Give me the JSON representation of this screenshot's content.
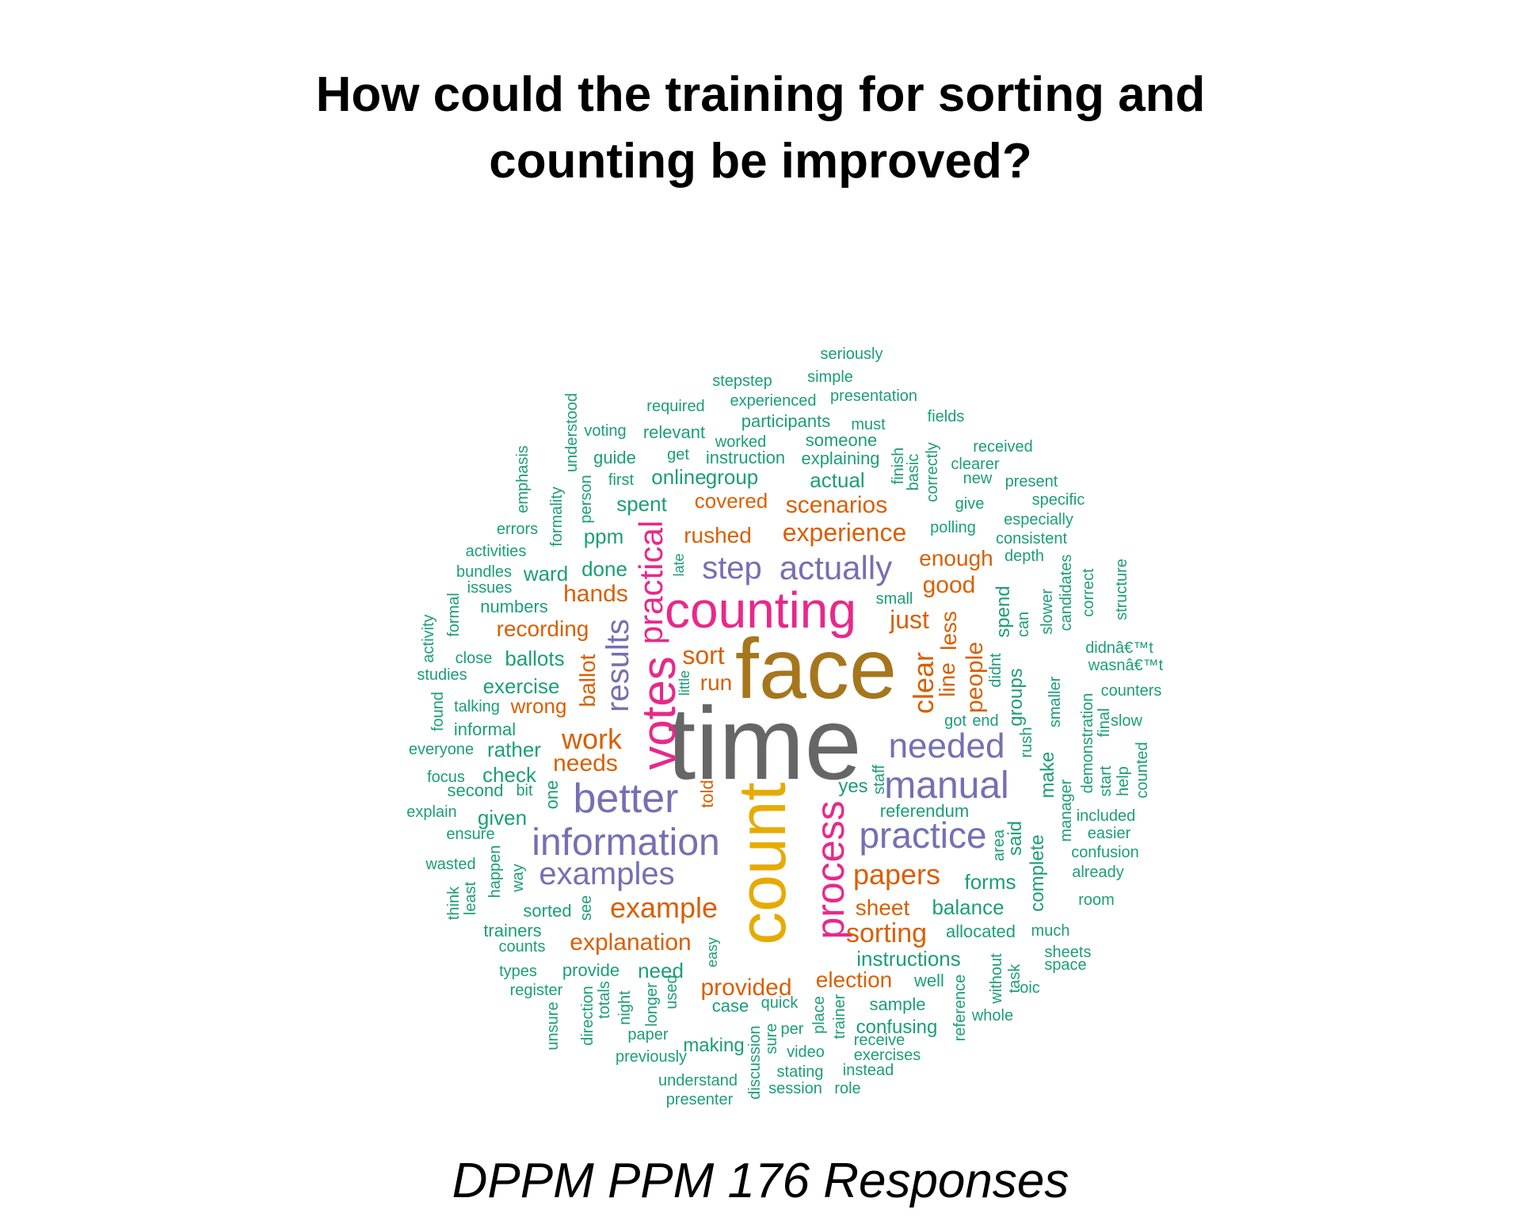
{
  "title_line1": "How could the training for sorting and",
  "title_line2": "counting be improved?",
  "caption": "DPPM PPM 176 Responses",
  "palette": {
    "teal": "#1b9e77",
    "orange": "#d95f02",
    "purple": "#7570b3",
    "magenta": "#e7298a",
    "olive": "#a6761d",
    "gold": "#e6ab02",
    "gray": "#666666"
  },
  "words": [
    {
      "text": "time",
      "color": "gray"
    },
    {
      "text": "face",
      "color": "olive"
    },
    {
      "text": "count",
      "color": "gold"
    },
    {
      "text": "counting",
      "color": "magenta"
    },
    {
      "text": "votes",
      "color": "magenta"
    },
    {
      "text": "process",
      "color": "magenta"
    },
    {
      "text": "practical",
      "color": "magenta"
    },
    {
      "text": "better",
      "color": "purple"
    },
    {
      "text": "information",
      "color": "purple"
    },
    {
      "text": "manual",
      "color": "purple"
    },
    {
      "text": "practice",
      "color": "purple"
    },
    {
      "text": "needed",
      "color": "purple"
    },
    {
      "text": "examples",
      "color": "purple"
    },
    {
      "text": "actually",
      "color": "purple"
    },
    {
      "text": "step",
      "color": "purple"
    },
    {
      "text": "results",
      "color": "purple"
    },
    {
      "text": "example",
      "color": "orange"
    },
    {
      "text": "papers",
      "color": "orange"
    },
    {
      "text": "experience",
      "color": "orange"
    },
    {
      "text": "clear",
      "color": "orange"
    },
    {
      "text": "work",
      "color": "orange"
    },
    {
      "text": "sorting",
      "color": "orange"
    },
    {
      "text": "explanation",
      "color": "orange"
    },
    {
      "text": "provided",
      "color": "orange"
    },
    {
      "text": "scenarios",
      "color": "orange"
    },
    {
      "text": "just",
      "color": "orange"
    },
    {
      "text": "election",
      "color": "orange"
    },
    {
      "text": "sheet",
      "color": "orange"
    },
    {
      "text": "enough",
      "color": "orange"
    },
    {
      "text": "people",
      "color": "orange"
    },
    {
      "text": "good",
      "color": "orange"
    },
    {
      "text": "rushed",
      "color": "orange"
    },
    {
      "text": "covered",
      "color": "orange"
    },
    {
      "text": "recording",
      "color": "orange"
    },
    {
      "text": "hands",
      "color": "orange"
    },
    {
      "text": "needs",
      "color": "orange"
    },
    {
      "text": "wrong",
      "color": "orange"
    },
    {
      "text": "sort",
      "color": "orange"
    },
    {
      "text": "run",
      "color": "orange"
    },
    {
      "text": "ballot",
      "color": "orange"
    },
    {
      "text": "line",
      "color": "orange"
    },
    {
      "text": "less",
      "color": "orange"
    },
    {
      "text": "told",
      "color": "orange"
    },
    {
      "text": "instructions",
      "color": "teal"
    },
    {
      "text": "balance",
      "color": "teal"
    },
    {
      "text": "forms",
      "color": "teal"
    },
    {
      "text": "complete",
      "color": "teal"
    },
    {
      "text": "said",
      "color": "teal"
    },
    {
      "text": "make",
      "color": "teal"
    },
    {
      "text": "groups",
      "color": "teal"
    },
    {
      "text": "spend",
      "color": "teal"
    },
    {
      "text": "yes",
      "color": "teal"
    },
    {
      "text": "referendum",
      "color": "teal"
    },
    {
      "text": "allocated",
      "color": "teal"
    },
    {
      "text": "much",
      "color": "teal"
    },
    {
      "text": "ballots",
      "color": "teal"
    },
    {
      "text": "exercise",
      "color": "teal"
    },
    {
      "text": "done",
      "color": "teal"
    },
    {
      "text": "ward",
      "color": "teal"
    },
    {
      "text": "ppm",
      "color": "teal"
    },
    {
      "text": "spent",
      "color": "teal"
    },
    {
      "text": "online",
      "color": "teal"
    },
    {
      "text": "group",
      "color": "teal"
    },
    {
      "text": "actual",
      "color": "teal"
    },
    {
      "text": "check",
      "color": "teal"
    },
    {
      "text": "rather",
      "color": "teal"
    },
    {
      "text": "given",
      "color": "teal"
    },
    {
      "text": "need",
      "color": "teal"
    },
    {
      "text": "making",
      "color": "teal"
    },
    {
      "text": "confusing",
      "color": "teal"
    },
    {
      "text": "sample",
      "color": "teal"
    },
    {
      "text": "well",
      "color": "teal"
    },
    {
      "text": "one",
      "color": "teal"
    },
    {
      "text": "someone",
      "color": "teal"
    },
    {
      "text": "relevant",
      "color": "teal"
    },
    {
      "text": "participants",
      "color": "teal"
    },
    {
      "text": "explaining",
      "color": "teal"
    },
    {
      "text": "instruction",
      "color": "teal"
    },
    {
      "text": "guide",
      "color": "teal"
    },
    {
      "text": "smaller",
      "color": "teal"
    },
    {
      "text": "manager",
      "color": "teal"
    },
    {
      "text": "demonstration",
      "color": "teal"
    },
    {
      "text": "area",
      "color": "teal"
    },
    {
      "text": "seriously",
      "color": "teal"
    },
    {
      "text": "simple",
      "color": "teal"
    },
    {
      "text": "stepstep",
      "color": "teal"
    },
    {
      "text": "presentation",
      "color": "teal"
    },
    {
      "text": "experienced",
      "color": "teal"
    },
    {
      "text": "required",
      "color": "teal"
    },
    {
      "text": "fields",
      "color": "teal"
    },
    {
      "text": "understood",
      "color": "teal"
    },
    {
      "text": "must",
      "color": "teal"
    },
    {
      "text": "voting",
      "color": "teal"
    },
    {
      "text": "worked",
      "color": "teal"
    },
    {
      "text": "received",
      "color": "teal"
    },
    {
      "text": "get",
      "color": "teal"
    },
    {
      "text": "finish",
      "color": "teal"
    },
    {
      "text": "basic",
      "color": "teal"
    },
    {
      "text": "correctly",
      "color": "teal"
    },
    {
      "text": "clearer",
      "color": "teal"
    },
    {
      "text": "emphasis",
      "color": "teal"
    },
    {
      "text": "new",
      "color": "teal"
    },
    {
      "text": "present",
      "color": "teal"
    },
    {
      "text": "first",
      "color": "teal"
    },
    {
      "text": "person",
      "color": "teal"
    },
    {
      "text": "formality",
      "color": "teal"
    },
    {
      "text": "specific",
      "color": "teal"
    },
    {
      "text": "give",
      "color": "teal"
    },
    {
      "text": "especially",
      "color": "teal"
    },
    {
      "text": "errors",
      "color": "teal"
    },
    {
      "text": "polling",
      "color": "teal"
    },
    {
      "text": "consistent",
      "color": "teal"
    },
    {
      "text": "activities",
      "color": "teal"
    },
    {
      "text": "depth",
      "color": "teal"
    },
    {
      "text": "late",
      "color": "teal"
    },
    {
      "text": "bundles",
      "color": "teal"
    },
    {
      "text": "issues",
      "color": "teal"
    },
    {
      "text": "candidates",
      "color": "teal"
    },
    {
      "text": "correct",
      "color": "teal"
    },
    {
      "text": "structure",
      "color": "teal"
    },
    {
      "text": "small",
      "color": "teal"
    },
    {
      "text": "numbers",
      "color": "teal"
    },
    {
      "text": "formal",
      "color": "teal"
    },
    {
      "text": "slower",
      "color": "teal"
    },
    {
      "text": "can",
      "color": "teal"
    },
    {
      "text": "activity",
      "color": "teal"
    },
    {
      "text": "didnâ€™t",
      "color": "teal"
    },
    {
      "text": "close",
      "color": "teal"
    },
    {
      "text": "wasnâ€™t",
      "color": "teal"
    },
    {
      "text": "didnt",
      "color": "teal"
    },
    {
      "text": "studies",
      "color": "teal"
    },
    {
      "text": "little",
      "color": "teal"
    },
    {
      "text": "counters",
      "color": "teal"
    },
    {
      "text": "talking",
      "color": "teal"
    },
    {
      "text": "found",
      "color": "teal"
    },
    {
      "text": "got",
      "color": "teal"
    },
    {
      "text": "end",
      "color": "teal"
    },
    {
      "text": "final",
      "color": "teal"
    },
    {
      "text": "slow",
      "color": "teal"
    },
    {
      "text": "informal",
      "color": "teal"
    },
    {
      "text": "rush",
      "color": "teal"
    },
    {
      "text": "everyone",
      "color": "teal"
    },
    {
      "text": "start",
      "color": "teal"
    },
    {
      "text": "help",
      "color": "teal"
    },
    {
      "text": "counted",
      "color": "teal"
    },
    {
      "text": "focus",
      "color": "teal"
    },
    {
      "text": "staff",
      "color": "teal"
    },
    {
      "text": "second",
      "color": "teal"
    },
    {
      "text": "bit",
      "color": "teal"
    },
    {
      "text": "explain",
      "color": "teal"
    },
    {
      "text": "included",
      "color": "teal"
    },
    {
      "text": "ensure",
      "color": "teal"
    },
    {
      "text": "easier",
      "color": "teal"
    },
    {
      "text": "happen",
      "color": "teal"
    },
    {
      "text": "confusion",
      "color": "teal"
    },
    {
      "text": "wasted",
      "color": "teal"
    },
    {
      "text": "way",
      "color": "teal"
    },
    {
      "text": "already",
      "color": "teal"
    },
    {
      "text": "think",
      "color": "teal"
    },
    {
      "text": "least",
      "color": "teal"
    },
    {
      "text": "room",
      "color": "teal"
    },
    {
      "text": "sorted",
      "color": "teal"
    },
    {
      "text": "see",
      "color": "teal"
    },
    {
      "text": "trainers",
      "color": "teal"
    },
    {
      "text": "counts",
      "color": "teal"
    },
    {
      "text": "easy",
      "color": "teal"
    },
    {
      "text": "sheets",
      "color": "teal"
    },
    {
      "text": "space",
      "color": "teal"
    },
    {
      "text": "types",
      "color": "teal"
    },
    {
      "text": "provide",
      "color": "teal"
    },
    {
      "text": "without",
      "color": "teal"
    },
    {
      "text": "task",
      "color": "teal"
    },
    {
      "text": "register",
      "color": "teal"
    },
    {
      "text": "reference",
      "color": "teal"
    },
    {
      "text": "oic",
      "color": "teal"
    },
    {
      "text": "unsure",
      "color": "teal"
    },
    {
      "text": "direction",
      "color": "teal"
    },
    {
      "text": "totals",
      "color": "teal"
    },
    {
      "text": "night",
      "color": "teal"
    },
    {
      "text": "longer",
      "color": "teal"
    },
    {
      "text": "used",
      "color": "teal"
    },
    {
      "text": "case",
      "color": "teal"
    },
    {
      "text": "quick",
      "color": "teal"
    },
    {
      "text": "trainer",
      "color": "teal"
    },
    {
      "text": "whole",
      "color": "teal"
    },
    {
      "text": "paper",
      "color": "teal"
    },
    {
      "text": "discussion",
      "color": "teal"
    },
    {
      "text": "sure",
      "color": "teal"
    },
    {
      "text": "per",
      "color": "teal"
    },
    {
      "text": "place",
      "color": "teal"
    },
    {
      "text": "receive",
      "color": "teal"
    },
    {
      "text": "previously",
      "color": "teal"
    },
    {
      "text": "video",
      "color": "teal"
    },
    {
      "text": "exercises",
      "color": "teal"
    },
    {
      "text": "stating",
      "color": "teal"
    },
    {
      "text": "instead",
      "color": "teal"
    },
    {
      "text": "understand",
      "color": "teal"
    },
    {
      "text": "session",
      "color": "teal"
    },
    {
      "text": "role",
      "color": "teal"
    },
    {
      "text": "presenter",
      "color": "teal"
    }
  ]
}
